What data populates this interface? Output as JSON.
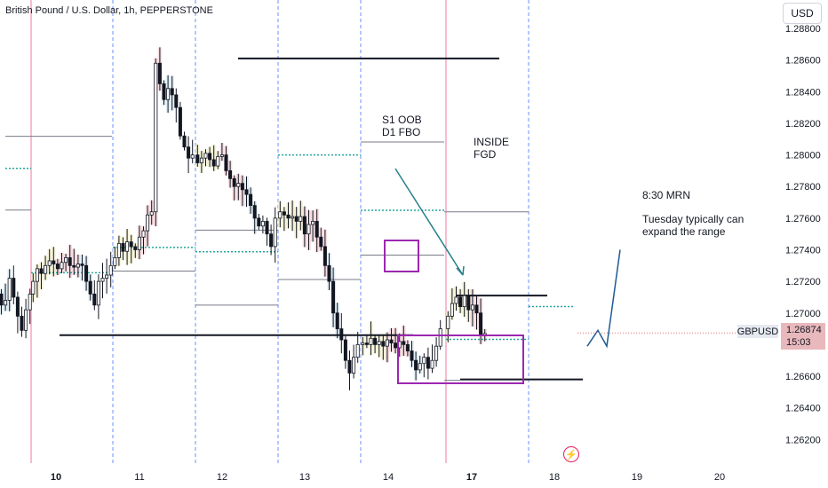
{
  "title": "British Pound / U.S. Dollar, 1h, PEPPERSTONE",
  "currency_button": "USD",
  "ticker": "GBPUSD",
  "last_price": "1.26874",
  "countdown": "15:03",
  "annotations": {
    "s1": "S1 OOB",
    "d1": "D1 FBO",
    "inside": "INSIDE",
    "fgd": "FGD",
    "mrn": "8:30 MRN",
    "tuesday1": "Tuesday typically can",
    "tuesday2": "expand the range"
  },
  "colors": {
    "session_line": "#e91e63",
    "day_line": "#2962ff",
    "up_candle": "#ffffff",
    "down_candle": "#131722",
    "box": "#9c27b0",
    "arrow": "#26808a",
    "projection": "#1e5a96",
    "dotted_level": "#26a69a"
  },
  "chart_data": {
    "type": "candlestick",
    "x_tick_labels": [
      "10",
      "11",
      "12",
      "13",
      "14",
      "17",
      "18",
      "19",
      "20"
    ],
    "y_tick_labels": [
      "1.28800",
      "1.28600",
      "1.28400",
      "1.28200",
      "1.28000",
      "1.27800",
      "1.27600",
      "1.27400",
      "1.27200",
      "1.27000",
      "1.26800",
      "1.26600",
      "1.26400",
      "1.26200"
    ],
    "ylim": [
      1.2605,
      1.2898
    ],
    "days": [
      "10",
      "11",
      "12",
      "13",
      "14",
      "17",
      "18",
      "19",
      "20"
    ],
    "price_path": [
      [
        1.271,
        1.2736,
        1.27,
        1.2722,
        1.2725,
        1.2718,
        1.2721,
        1.2719,
        1.2716,
        1.2722,
        1.2718,
        1.2712,
        1.2705,
        1.2708,
        1.2722,
        1.271,
        1.2698,
        1.2689,
        1.2702,
        1.2712
      ],
      [
        1.272,
        1.2728,
        1.2725,
        1.273,
        1.2733,
        1.2731,
        1.2728,
        1.2732,
        1.2735,
        1.273,
        1.2729,
        1.2731,
        1.273,
        1.272,
        1.2712,
        1.2705,
        1.272,
        1.2722,
        1.2724,
        1.273
      ],
      [
        1.2735,
        1.2744,
        1.2739,
        1.2745,
        1.2742,
        1.274,
        1.2748,
        1.2752,
        1.2762,
        1.2764,
        1.2858,
        1.2845,
        1.2835,
        1.2842,
        1.2838,
        1.283,
        1.2812,
        1.2805,
        1.2798,
        1.28
      ],
      [
        1.2795,
        1.2798,
        1.2801,
        1.2797,
        1.2793,
        1.2799,
        1.28,
        1.279,
        1.2785,
        1.278,
        1.2782,
        1.2778,
        1.2775,
        1.2768,
        1.276,
        1.2755,
        1.2758,
        1.275,
        1.2742,
        1.276
      ],
      [
        1.2764,
        1.2762,
        1.276,
        1.2761,
        1.2758,
        1.2761,
        1.275,
        1.2756,
        1.2758,
        1.2748,
        1.2742,
        1.273,
        1.272,
        1.27,
        1.269,
        1.2683,
        1.267,
        1.2662,
        1.2672,
        1.268
      ],
      [
        1.2681,
        1.268,
        1.2684,
        1.268,
        1.2682,
        1.2679,
        1.2683,
        1.2681,
        1.2678,
        1.2682,
        1.268,
        1.2676,
        1.267,
        1.2664,
        1.2668,
        1.2672,
        1.2665,
        1.267,
        1.2679,
        1.269
      ],
      [
        1.2698,
        1.2706,
        1.271,
        1.2704,
        1.2711,
        1.2702,
        1.2705,
        1.27,
        1.2686,
        1.2687
      ]
    ],
    "levels": [
      {
        "price": 1.2861
      },
      {
        "price": 1.2686
      },
      {
        "price": 1.2711
      },
      {
        "price": 1.2658
      }
    ],
    "projection": [
      [
        1.2679,
        1.2689,
        1.2679,
        1.274
      ]
    ]
  }
}
